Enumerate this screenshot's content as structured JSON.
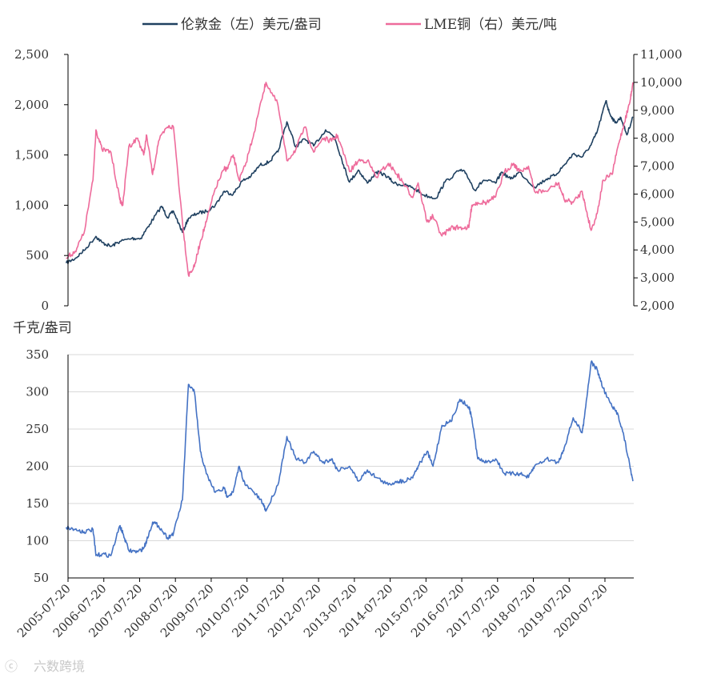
{
  "legend": {
    "gold": "伦敦金（左）美元/盎司",
    "copper": "LME铜（右）美元/吨"
  },
  "bottom_unit": "千克/盎司",
  "watermark": "六数跨境",
  "colors": {
    "gold": "#1f4060",
    "copper": "#ee6b9b",
    "ratio": "#4472c4",
    "grid": "#d9d9d9",
    "axis": "#000000"
  },
  "chart_data": [
    {
      "type": "line",
      "title": "",
      "x_ticks": [
        "2005-07-20",
        "2006-07-20",
        "2007-07-20",
        "2008-07-20",
        "2009-07-20",
        "2010-07-20",
        "2011-07-20",
        "2012-07-20",
        "2013-07-20",
        "2014-07-20",
        "2015-07-20",
        "2016-07-20",
        "2017-07-20",
        "2018-07-20",
        "2019-07-20",
        "2020-07-20"
      ],
      "x_range": [
        "2005-07-20",
        "2021-05-10"
      ],
      "y_left": {
        "range": [
          0,
          2500
        ],
        "ticks": [
          "0",
          "500",
          "1,000",
          "1,500",
          "2,000",
          "2,500"
        ]
      },
      "y_right": {
        "range": [
          2000,
          11000
        ],
        "ticks": [
          "2,000",
          "3,000",
          "4,000",
          "5,000",
          "6,000",
          "7,000",
          "8,000",
          "9,000",
          "10,000",
          "11,000"
        ]
      },
      "grid": false,
      "legend_position": "top-center",
      "series": [
        {
          "name": "伦敦金（左）美元/盎司",
          "axis": "left",
          "x": [
            "2005-07",
            "2005-10",
            "2006-01",
            "2006-05",
            "2006-07",
            "2006-10",
            "2007-01",
            "2007-05",
            "2007-08",
            "2007-11",
            "2008-03",
            "2008-05",
            "2008-07",
            "2008-10",
            "2008-12",
            "2009-03",
            "2009-06",
            "2009-09",
            "2009-12",
            "2010-03",
            "2010-06",
            "2010-09",
            "2010-12",
            "2011-03",
            "2011-06",
            "2011-09",
            "2011-12",
            "2012-03",
            "2012-06",
            "2012-10",
            "2013-01",
            "2013-04",
            "2013-06",
            "2013-09",
            "2013-12",
            "2014-03",
            "2014-06",
            "2014-09",
            "2014-12",
            "2015-03",
            "2015-07",
            "2015-11",
            "2016-02",
            "2016-07",
            "2016-09",
            "2016-12",
            "2017-03",
            "2017-07",
            "2017-09",
            "2017-12",
            "2018-03",
            "2018-08",
            "2018-12",
            "2019-03",
            "2019-06",
            "2019-09",
            "2019-12",
            "2020-03",
            "2020-05",
            "2020-08",
            "2020-09",
            "2020-11",
            "2021-01",
            "2021-03",
            "2021-05"
          ],
          "y": [
            425,
            470,
            550,
            690,
            630,
            590,
            640,
            670,
            670,
            810,
            990,
            880,
            940,
            730,
            870,
            920,
            940,
            1000,
            1140,
            1110,
            1240,
            1290,
            1400,
            1430,
            1530,
            1830,
            1580,
            1660,
            1590,
            1750,
            1680,
            1400,
            1230,
            1350,
            1220,
            1330,
            1300,
            1220,
            1200,
            1180,
            1100,
            1070,
            1230,
            1350,
            1320,
            1150,
            1250,
            1220,
            1330,
            1260,
            1330,
            1180,
            1260,
            1300,
            1400,
            1510,
            1480,
            1600,
            1730,
            2040,
            1930,
            1820,
            1870,
            1700,
            1880
          ]
        },
        {
          "name": "LME铜（右）美元/吨",
          "axis": "right",
          "x": [
            "2005-07",
            "2005-10",
            "2006-01",
            "2006-04",
            "2006-05",
            "2006-07",
            "2006-10",
            "2007-01",
            "2007-02",
            "2007-04",
            "2007-07",
            "2007-09",
            "2007-10",
            "2007-12",
            "2008-02",
            "2008-05",
            "2008-07",
            "2008-10",
            "2008-12",
            "2009-02",
            "2009-04",
            "2009-06",
            "2009-09",
            "2009-12",
            "2010-01",
            "2010-03",
            "2010-05",
            "2010-07",
            "2010-10",
            "2011-01",
            "2011-02",
            "2011-06",
            "2011-09",
            "2011-12",
            "2012-03",
            "2012-06",
            "2012-09",
            "2012-12",
            "2013-02",
            "2013-06",
            "2013-09",
            "2013-12",
            "2014-03",
            "2014-07",
            "2014-10",
            "2014-12",
            "2015-03",
            "2015-05",
            "2015-08",
            "2015-10",
            "2016-01",
            "2016-04",
            "2016-07",
            "2016-10",
            "2016-11",
            "2017-01",
            "2017-04",
            "2017-07",
            "2017-10",
            "2018-01",
            "2018-03",
            "2018-06",
            "2018-08",
            "2018-12",
            "2019-04",
            "2019-06",
            "2019-09",
            "2019-12",
            "2020-01",
            "2020-03",
            "2020-05",
            "2020-07",
            "2020-10",
            "2020-12",
            "2021-02",
            "2021-04",
            "2021-05"
          ],
          "y": [
            3700,
            3950,
            4600,
            6500,
            8300,
            7600,
            7500,
            5800,
            5600,
            7700,
            8000,
            7400,
            8100,
            6700,
            7900,
            8400,
            8400,
            5000,
            3100,
            3400,
            4300,
            5000,
            6200,
            6900,
            6900,
            7400,
            6500,
            7000,
            8200,
            9600,
            10000,
            9200,
            7200,
            7600,
            8400,
            7500,
            8000,
            7900,
            8100,
            6800,
            7200,
            7200,
            6600,
            7100,
            6700,
            6400,
            5900,
            6400,
            5000,
            5200,
            4500,
            4800,
            4800,
            4800,
            5600,
            5700,
            5700,
            5900,
            6800,
            7100,
            6800,
            7000,
            6100,
            6100,
            6400,
            5800,
            5700,
            6100,
            5600,
            4700,
            5300,
            6500,
            6700,
            7700,
            8500,
            9300,
            10000
          ]
        }
      ]
    },
    {
      "type": "line",
      "title": "",
      "ylabel": "千克/盎司",
      "x_ticks": [
        "2005-07-20",
        "2006-07-20",
        "2007-07-20",
        "2008-07-20",
        "2009-07-20",
        "2010-07-20",
        "2011-07-20",
        "2012-07-20",
        "2013-07-20",
        "2014-07-20",
        "2015-07-20",
        "2016-07-20",
        "2017-07-20",
        "2018-07-20",
        "2019-07-20",
        "2020-07-20"
      ],
      "x_range": [
        "2005-07-20",
        "2021-05-10"
      ],
      "y_range": [
        50,
        350
      ],
      "y_ticks": [
        "50",
        "100",
        "150",
        "200",
        "250",
        "300",
        "350"
      ],
      "grid": true,
      "series": [
        {
          "axis": "left",
          "x": [
            "2005-07",
            "2005-10",
            "2006-01",
            "2006-04",
            "2006-05",
            "2006-07",
            "2006-10",
            "2007-01",
            "2007-02",
            "2007-04",
            "2007-07",
            "2007-09",
            "2007-10",
            "2007-12",
            "2008-02",
            "2008-05",
            "2008-07",
            "2008-10",
            "2008-12",
            "2009-02",
            "2009-04",
            "2009-06",
            "2009-09",
            "2009-12",
            "2010-01",
            "2010-03",
            "2010-05",
            "2010-07",
            "2010-10",
            "2011-01",
            "2011-02",
            "2011-06",
            "2011-09",
            "2011-12",
            "2012-03",
            "2012-06",
            "2012-09",
            "2012-12",
            "2013-02",
            "2013-06",
            "2013-09",
            "2013-12",
            "2014-03",
            "2014-07",
            "2014-10",
            "2014-12",
            "2015-03",
            "2015-05",
            "2015-08",
            "2015-10",
            "2016-01",
            "2016-04",
            "2016-07",
            "2016-10",
            "2016-11",
            "2017-01",
            "2017-04",
            "2017-07",
            "2017-10",
            "2018-01",
            "2018-03",
            "2018-06",
            "2018-08",
            "2018-12",
            "2019-04",
            "2019-06",
            "2019-09",
            "2019-12",
            "2020-01",
            "2020-03",
            "2020-05",
            "2020-07",
            "2020-10",
            "2020-12",
            "2021-02",
            "2021-04",
            "2021-05"
          ],
          "y": [
            118,
            115,
            112,
            115,
            80,
            82,
            80,
            120,
            110,
            87,
            85,
            90,
            100,
            125,
            120,
            104,
            110,
            155,
            310,
            300,
            220,
            190,
            165,
            170,
            160,
            165,
            200,
            175,
            165,
            150,
            140,
            175,
            240,
            210,
            205,
            220,
            205,
            210,
            195,
            200,
            180,
            195,
            185,
            175,
            180,
            180,
            185,
            200,
            220,
            200,
            255,
            260,
            290,
            280,
            265,
            210,
            205,
            210,
            190,
            190,
            190,
            185,
            200,
            210,
            205,
            225,
            265,
            245,
            275,
            340,
            330,
            305,
            280,
            270,
            240,
            200,
            180
          ]
        }
      ]
    }
  ]
}
